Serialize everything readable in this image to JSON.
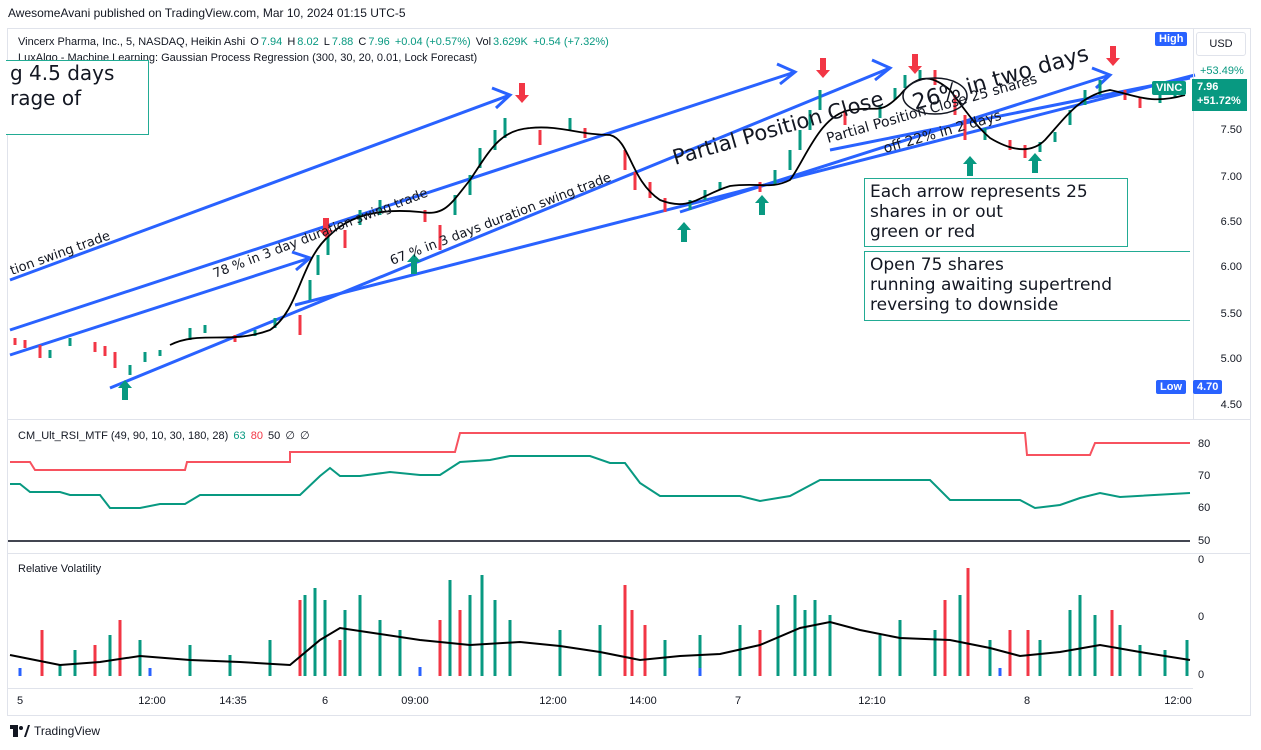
{
  "header": {
    "published": "AwesomeAvani published on TradingView.com, Mar 10, 2024 01:15 UTC-5"
  },
  "symbol": {
    "name": "Vincerx Pharma, Inc., 5, NASDAQ, Heikin Ashi",
    "o_label": "O",
    "o": "7.94",
    "h_label": "H",
    "h": "8.02",
    "l_label": "L",
    "l": "7.88",
    "c_label": "C",
    "c": "7.96",
    "change": "+0.04 (+0.57%)",
    "vol_label": "Vol",
    "vol": "3.629K",
    "vol_change": "+0.54 (+7.32%)"
  },
  "indicator": {
    "name": "LuxAlgo - Machine Learning: Gaussian Process Regression (300, 30, 20, 0.01, Lock Forecast)"
  },
  "price_axis": {
    "currency": "USD",
    "ticks": [
      "7.50",
      "7.00",
      "6.50",
      "6.00",
      "5.50",
      "5.00",
      "4.50"
    ],
    "high_label": "High",
    "low_label": "Low",
    "low_value": "4.70",
    "high_pct": "+53.49%",
    "ticker": "VINC",
    "last_price": "7.96",
    "last_pct": "+51.72%",
    "colors": {
      "up": "#089981",
      "down": "#f23645",
      "accent": "#2962ff"
    }
  },
  "rsi": {
    "name": "CM_Ult_RSI_MTF (49, 90, 10, 30, 180, 28)",
    "v1": "63",
    "v2": "80",
    "v3": "50",
    "v4": "∅",
    "v5": "∅",
    "ticks": [
      "80",
      "70",
      "60",
      "50"
    ]
  },
  "volatility": {
    "name": "Relative Volatility",
    "ticks": [
      "0",
      "0",
      "0"
    ]
  },
  "time_axis": [
    "5",
    "12:00",
    "14:35",
    "6",
    "09:00",
    "12:00",
    "14:00",
    "7",
    "12:10",
    "8",
    "12:00"
  ],
  "annotations": {
    "box_top_left_line1": "g  4.5 days",
    "box_top_left_line2": "rage of",
    "swing1": "tion swing trade",
    "swing2": "78 % in 3 day duration swing trade",
    "swing3": "67 % in 3 days duration swing trade",
    "partial_close": "Partial Position Close",
    "pct_26": "26%  in two days",
    "partial_close_25": "Partial Position Close 25 shares",
    "off_22": "off 22% in 2 days",
    "note1": [
      "Each arrow represents 25",
      "shares in or out",
      "green or red"
    ],
    "note2": [
      "Open 75 shares",
      "running awaiting supertrend",
      "reversing to downside"
    ]
  },
  "footer": {
    "brand": "TradingView"
  }
}
